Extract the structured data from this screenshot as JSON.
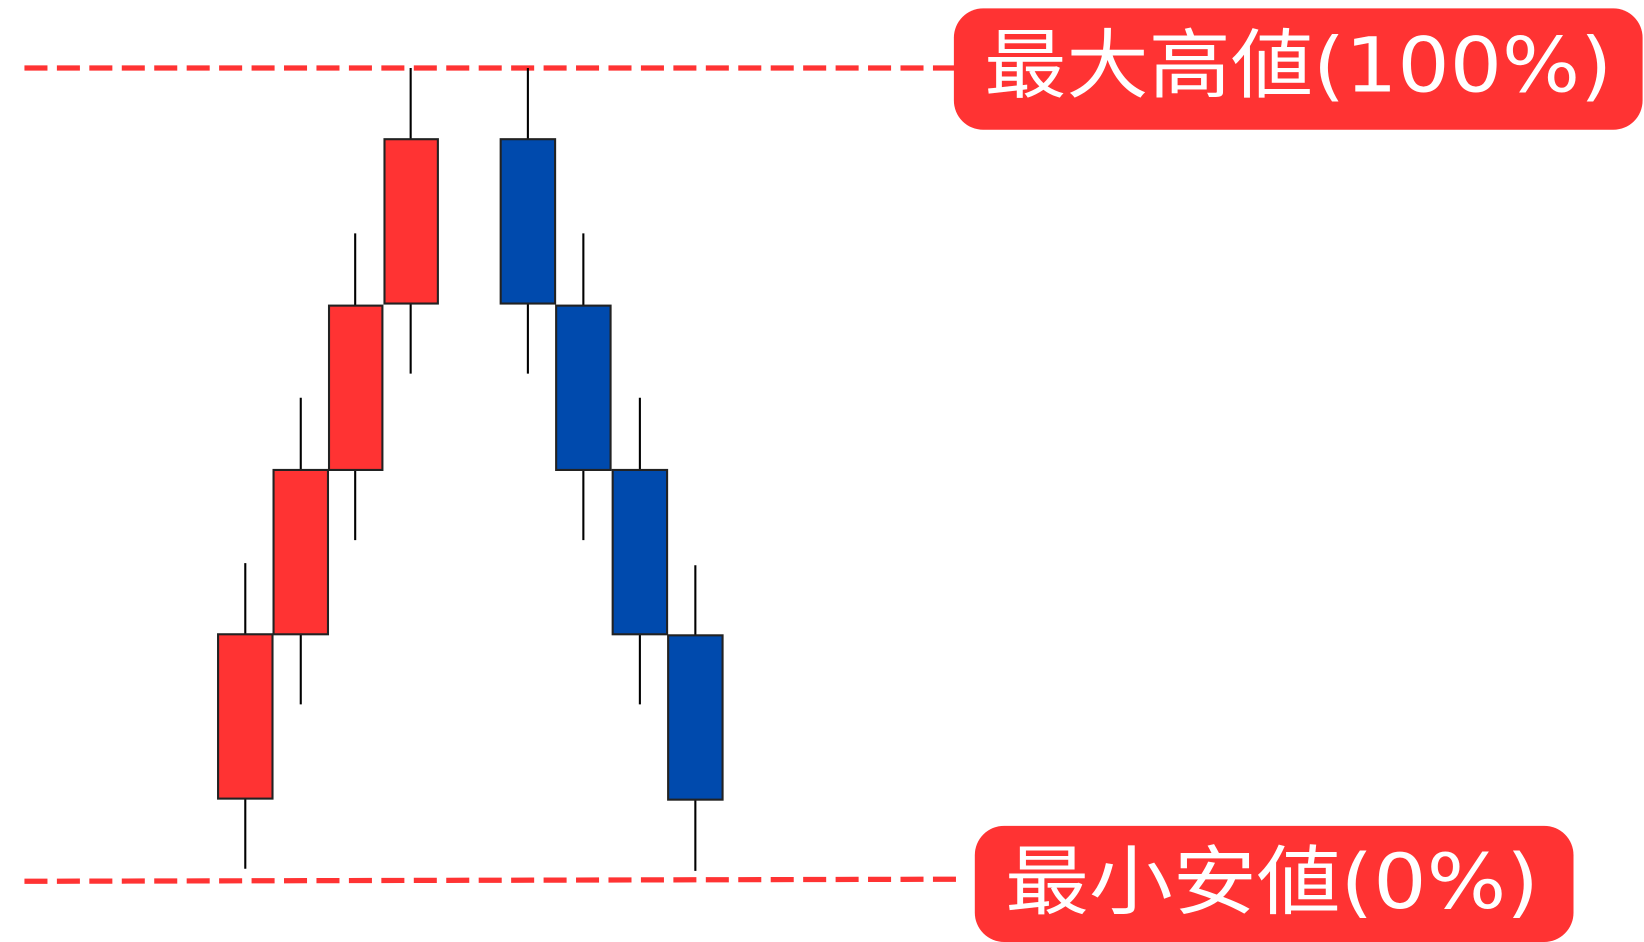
{
  "labels": {
    "max": "最大高値(100%)",
    "min": "最小安値(0%)"
  }
}
